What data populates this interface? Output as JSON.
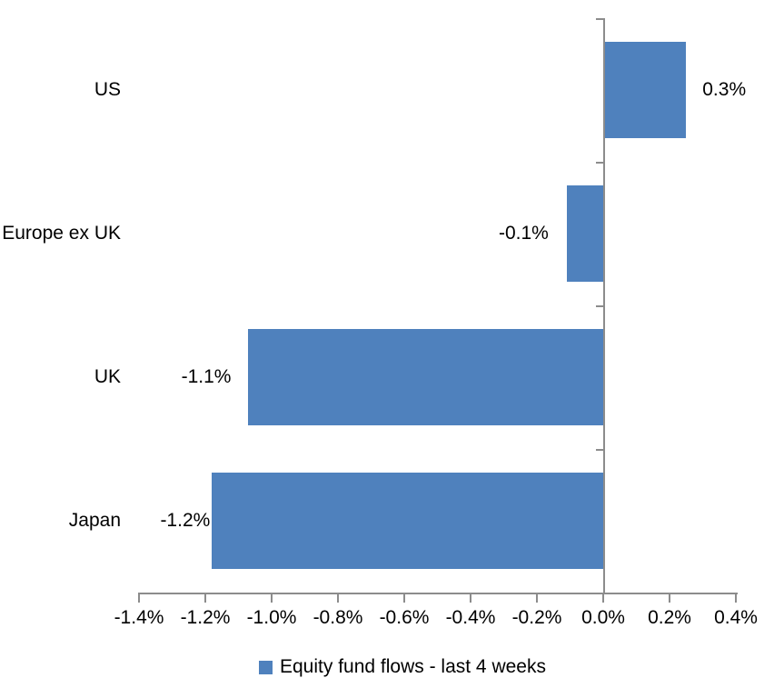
{
  "chart_data": {
    "type": "bar",
    "orientation": "horizontal",
    "title": "",
    "xlabel": "",
    "ylabel": "",
    "categories": [
      "US",
      "Europe ex UK",
      "UK",
      "Japan"
    ],
    "values": [
      0.3,
      -0.1,
      -1.1,
      -1.2
    ],
    "plot_values": [
      0.25,
      -0.11,
      -1.07,
      -1.18
    ],
    "data_labels": [
      "0.3%",
      "-0.1%",
      "-1.1%",
      "-1.2%"
    ],
    "xlim": [
      -1.4,
      0.4
    ],
    "x_tick_step": 0.2,
    "x_tick_labels": [
      "-1.4%",
      "-1.2%",
      "-1.0%",
      "-0.8%",
      "-0.6%",
      "-0.4%",
      "-0.2%",
      "0.0%",
      "0.2%",
      "0.4%"
    ],
    "grid": false,
    "legend": {
      "position": "bottom",
      "entries": [
        {
          "label": "Equity fund flows - last 4 weeks",
          "color": "#4F81BD"
        }
      ]
    },
    "colors": {
      "bar": "#4F81BD",
      "axis": "#8C8C8C",
      "text": "#000000",
      "background": "#FFFFFF"
    }
  }
}
